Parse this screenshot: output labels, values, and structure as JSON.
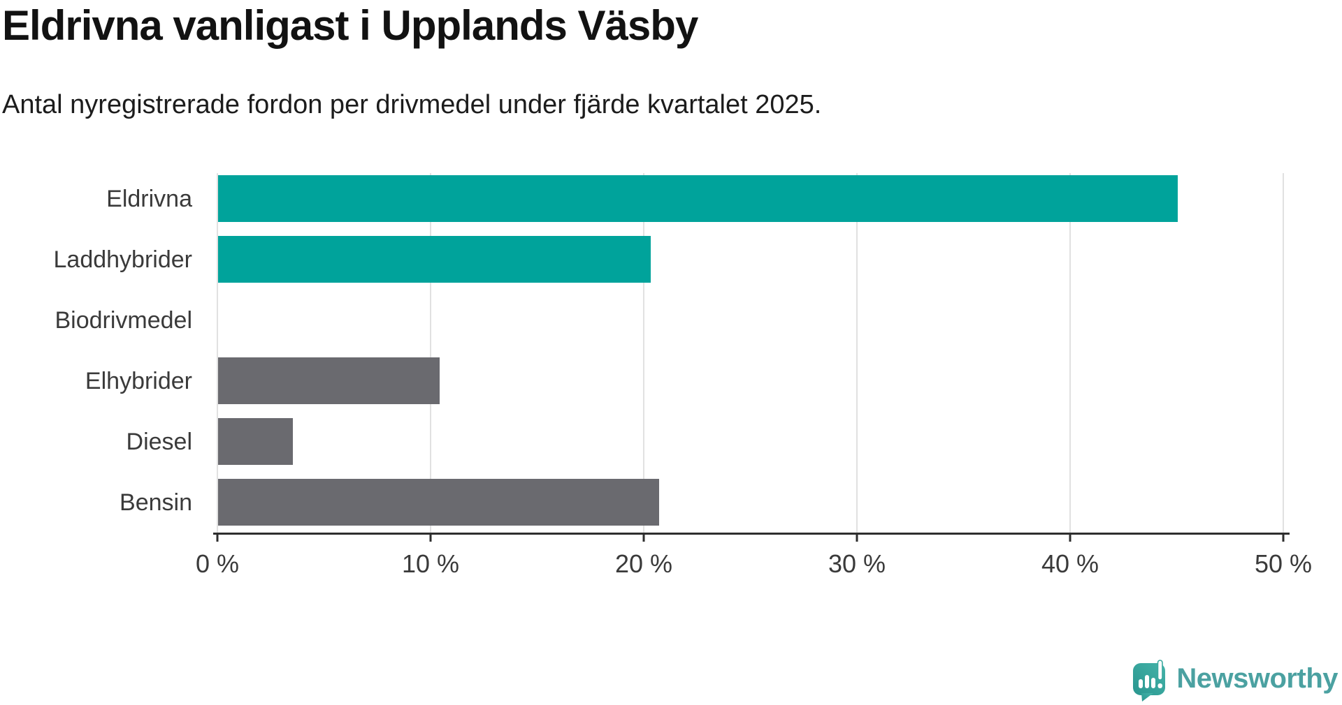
{
  "chart_data": {
    "type": "bar",
    "orientation": "horizontal",
    "title": "Eldrivna vanligast i Upplands Väsby",
    "subtitle": "Antal nyregistrerade fordon per drivmedel under fjärde kvartalet 2025.",
    "categories": [
      "Eldrivna",
      "Laddhybrider",
      "Biodrivmedel",
      "Elhybrider",
      "Diesel",
      "Bensin"
    ],
    "values": [
      45.0,
      20.3,
      0,
      10.4,
      3.5,
      20.7
    ],
    "unit": "%",
    "xlim": [
      0,
      50
    ],
    "xticks": [
      0,
      10,
      20,
      30,
      40,
      50
    ],
    "xtick_labels": [
      "0 %",
      "10 %",
      "20 %",
      "30 %",
      "40 %",
      "50 %"
    ],
    "xlabel": "",
    "ylabel": "",
    "grid": true,
    "legend": "none",
    "bar_colors": [
      "#00a39b",
      "#00a39b",
      "#00a39b",
      "#6a6a6f",
      "#6a6a6f",
      "#6a6a6f"
    ]
  },
  "colors": {
    "accent_teal": "#00a39b",
    "neutral_gray": "#6a6a6f",
    "gridline": "#e1e1e1",
    "axis": "#2e2e2e",
    "text_dark": "#121212",
    "text_label": "#3a3a3a",
    "brand_teal": "#4ba1a1"
  },
  "branding": {
    "logo_text": "Newsworthy",
    "logo_icon": "newsworthy-speech-bubble-chart-icon"
  }
}
